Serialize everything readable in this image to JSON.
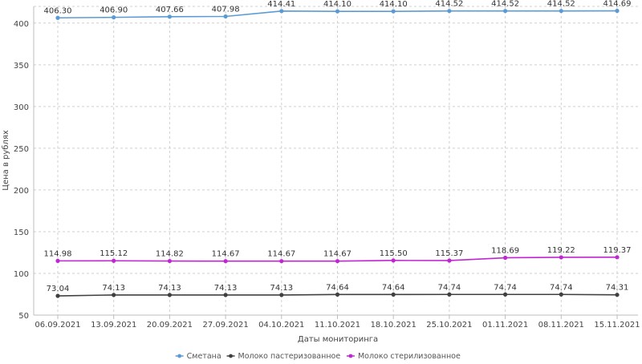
{
  "chart_data": {
    "type": "line",
    "title": "",
    "xlabel": "Даты мониторинга",
    "ylabel": "Цена в рублях",
    "ylim": [
      50,
      420
    ],
    "yticks": [
      50,
      100,
      150,
      200,
      250,
      300,
      350,
      400
    ],
    "grid": true,
    "legend_position": "bottom-center",
    "categories": [
      "06.09.2021",
      "13.09.2021",
      "20.09.2021",
      "27.09.2021",
      "04.10.2021",
      "11.10.2021",
      "18.10.2021",
      "25.10.2021",
      "01.11.2021",
      "08.11.2021",
      "15.11.2021"
    ],
    "series": [
      {
        "name": "Сметана",
        "color": "#5b9bd5",
        "values": [
          406.3,
          406.9,
          407.66,
          407.98,
          414.41,
          414.1,
          414.1,
          414.52,
          414.52,
          414.52,
          414.69
        ],
        "labels": [
          "406.30",
          "406.90",
          "407.66",
          "407.98",
          "414.41",
          "414.10",
          "414.10",
          "414.52",
          "414.52",
          "414.52",
          "414.69"
        ]
      },
      {
        "name": "Молоко пастеризованное",
        "color": "#404040",
        "values": [
          73.04,
          74.13,
          74.13,
          74.13,
          74.13,
          74.64,
          74.64,
          74.74,
          74.74,
          74.74,
          74.31
        ],
        "labels": [
          "73.04",
          "74.13",
          "74.13",
          "74.13",
          "74.13",
          "74.64",
          "74.64",
          "74.74",
          "74.74",
          "74.74",
          "74.31"
        ]
      },
      {
        "name": "Молоко стерилизованное",
        "color": "#c026d3",
        "values": [
          114.98,
          115.12,
          114.82,
          114.67,
          114.67,
          114.67,
          115.5,
          115.37,
          118.69,
          119.22,
          119.37
        ],
        "labels": [
          "114.98",
          "115.12",
          "114.82",
          "114.67",
          "114.67",
          "114.67",
          "115.50",
          "115.37",
          "118.69",
          "119.22",
          "119.37"
        ]
      }
    ]
  }
}
